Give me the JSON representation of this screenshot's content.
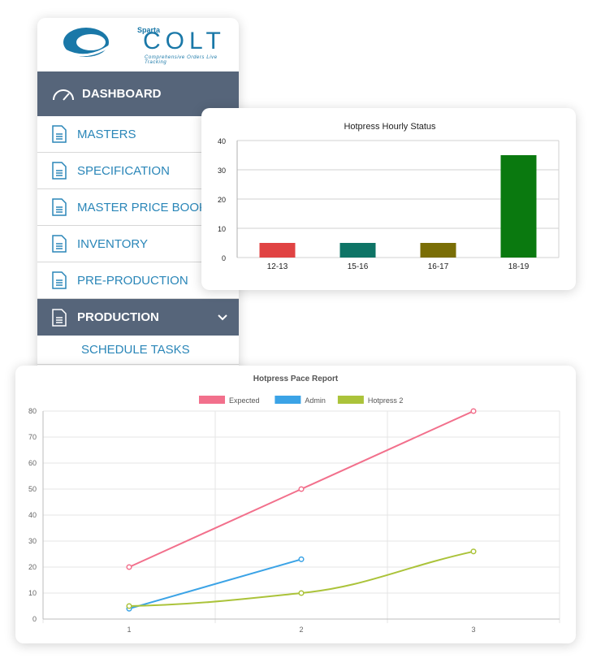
{
  "brand": {
    "small": "Sparta",
    "name": "COLT",
    "tagline": "Comprehensive Orders Live Tracking"
  },
  "sidebar": {
    "dashboard": "DASHBOARD",
    "items": [
      {
        "label": "MASTERS"
      },
      {
        "label": "SPECIFICATION"
      },
      {
        "label": "MASTER PRICE BOOK"
      },
      {
        "label": "INVENTORY"
      },
      {
        "label": "PRE-PRODUCTION"
      }
    ],
    "active": {
      "label": "PRODUCTION"
    },
    "sub_items": [
      {
        "label": "SCHEDULE TASKS"
      }
    ]
  },
  "chart_data": [
    {
      "type": "bar",
      "title": "Hotpress Hourly Status",
      "categories": [
        "12-13",
        "15-16",
        "16-17",
        "18-19"
      ],
      "values": [
        5,
        5,
        5,
        35
      ],
      "colors": [
        "#e04343",
        "#0e7466",
        "#7a6e06",
        "#0a790f"
      ],
      "ylim": [
        0,
        40
      ],
      "yticks": [
        0,
        10,
        20,
        30,
        40
      ],
      "grid": true
    },
    {
      "type": "line",
      "title": "Hotpress Pace Report",
      "x": [
        1,
        2,
        3
      ],
      "ylim": [
        0,
        80
      ],
      "yticks": [
        0,
        10,
        20,
        30,
        40,
        50,
        60,
        70,
        80
      ],
      "legend": "top",
      "grid": true,
      "series": [
        {
          "name": "Expected",
          "values": [
            20,
            50,
            80
          ],
          "color": "#f2708c"
        },
        {
          "name": "Admin",
          "values": [
            4,
            23,
            null
          ],
          "color": "#3ba3e6"
        },
        {
          "name": "Hotpress 2",
          "values": [
            5,
            10,
            26
          ],
          "color": "#abc33a"
        }
      ]
    }
  ]
}
